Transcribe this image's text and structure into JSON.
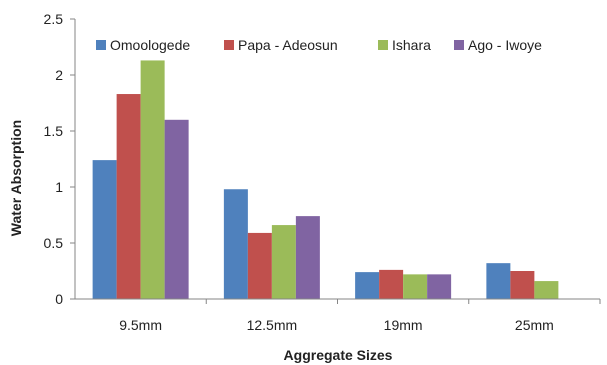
{
  "chart_data": {
    "type": "bar",
    "title": "",
    "xlabel": "Aggregate Sizes",
    "ylabel": "Water  Absorption",
    "categories": [
      "9.5mm",
      "12.5mm",
      "19mm",
      "25mm"
    ],
    "series": [
      {
        "name": "Omoologede",
        "color": "#4f81bd",
        "values": [
          1.24,
          0.98,
          0.24,
          0.32
        ]
      },
      {
        "name": "Papa - Adeosun",
        "color": "#c0504d",
        "values": [
          1.83,
          0.59,
          0.26,
          0.25
        ]
      },
      {
        "name": "Ishara",
        "color": "#9bbb59",
        "values": [
          2.13,
          0.66,
          0.22,
          0.16
        ]
      },
      {
        "name": "Ago - Iwoye",
        "color": "#8064a2",
        "values": [
          1.6,
          0.74,
          0.22,
          0
        ]
      }
    ],
    "ylim": [
      0,
      2.5
    ],
    "yticks": [
      "0",
      "0.5",
      "1",
      "1.5",
      "2",
      "2.5"
    ],
    "grid": false,
    "legend_position": "top"
  }
}
